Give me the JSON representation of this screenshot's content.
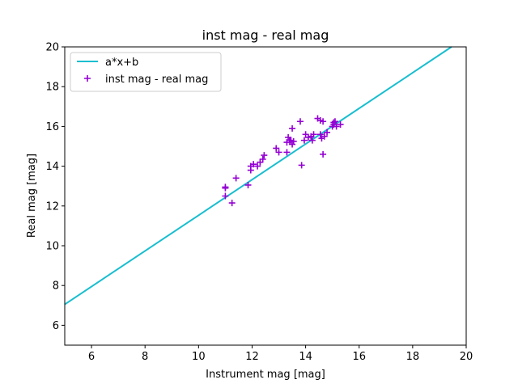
{
  "chart_data": {
    "type": "scatter",
    "title": "inst mag - real mag",
    "xlabel": "Instrument mag [mag]",
    "ylabel": "Real mag [mag]",
    "xlim": [
      5,
      20
    ],
    "ylim": [
      5,
      20
    ],
    "xticks": [
      "6",
      "8",
      "10",
      "12",
      "14",
      "16",
      "18",
      "20"
    ],
    "yticks": [
      "6",
      "8",
      "10",
      "12",
      "14",
      "16",
      "18",
      "20"
    ],
    "grid": false,
    "legend_position": "upper-left",
    "line": {
      "name": "a*x+b",
      "color": "#17becf",
      "points": [
        [
          5,
          7.05
        ],
        [
          19.45,
          20
        ]
      ]
    },
    "scatter": {
      "name": "inst mag - real mag",
      "color": "#9400d3",
      "marker": "+",
      "points": [
        [
          11.0,
          12.5
        ],
        [
          11.0,
          12.95
        ],
        [
          11.0,
          12.9
        ],
        [
          11.25,
          12.15
        ],
        [
          11.4,
          13.4
        ],
        [
          11.85,
          13.05
        ],
        [
          11.95,
          13.8
        ],
        [
          11.95,
          14.0
        ],
        [
          12.05,
          14.1
        ],
        [
          12.2,
          14.0
        ],
        [
          12.3,
          14.2
        ],
        [
          12.4,
          14.35
        ],
        [
          12.45,
          14.55
        ],
        [
          12.9,
          14.9
        ],
        [
          13.0,
          14.7
        ],
        [
          13.3,
          14.7
        ],
        [
          13.3,
          15.2
        ],
        [
          13.35,
          15.45
        ],
        [
          13.4,
          15.3
        ],
        [
          13.45,
          15.3
        ],
        [
          13.5,
          15.1
        ],
        [
          13.5,
          15.9
        ],
        [
          13.55,
          15.25
        ],
        [
          13.8,
          16.25
        ],
        [
          13.85,
          14.05
        ],
        [
          13.95,
          15.3
        ],
        [
          14.0,
          15.6
        ],
        [
          14.1,
          15.45
        ],
        [
          14.2,
          15.5
        ],
        [
          14.25,
          15.3
        ],
        [
          14.3,
          15.6
        ],
        [
          14.45,
          16.4
        ],
        [
          14.55,
          15.6
        ],
        [
          14.55,
          16.3
        ],
        [
          14.6,
          15.4
        ],
        [
          14.65,
          14.6
        ],
        [
          14.7,
          15.5
        ],
        [
          14.65,
          16.25
        ],
        [
          14.8,
          15.7
        ],
        [
          15.0,
          16.0
        ],
        [
          15.05,
          16.1
        ],
        [
          15.1,
          16.25
        ],
        [
          15.15,
          16.0
        ],
        [
          15.3,
          16.1
        ],
        [
          15.05,
          16.2
        ]
      ]
    }
  }
}
